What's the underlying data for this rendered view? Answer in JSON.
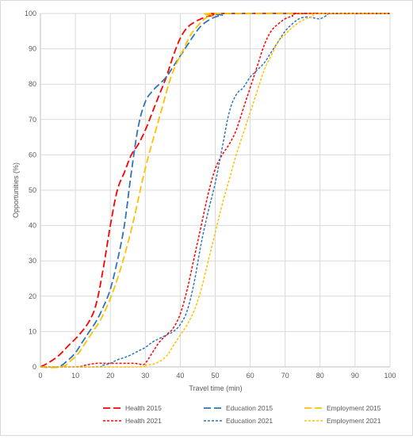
{
  "chart_data": {
    "type": "line",
    "xlabel": "Travel time (min)",
    "ylabel": "Opportunities (%)",
    "xlim": [
      0,
      100
    ],
    "ylim": [
      0,
      100
    ],
    "x_ticks": [
      "0",
      "10",
      "20",
      "30",
      "40",
      "50",
      "60",
      "70",
      "80",
      "90",
      "100"
    ],
    "y_ticks": [
      "0",
      "10",
      "20",
      "30",
      "40",
      "50",
      "60",
      "70",
      "80",
      "90",
      "100"
    ],
    "grid": "vertical and horizontal",
    "legend_position": "bottom",
    "series": [
      {
        "name": "Health 2015",
        "color": "#ff0000",
        "dash": "long-dash",
        "points": [
          [
            0,
            0
          ],
          [
            2,
            1
          ],
          [
            5,
            3
          ],
          [
            8,
            6
          ],
          [
            11,
            9
          ],
          [
            14,
            13
          ],
          [
            16,
            18
          ],
          [
            18,
            28
          ],
          [
            20,
            40
          ],
          [
            22,
            50
          ],
          [
            24,
            55
          ],
          [
            26,
            60
          ],
          [
            28,
            63
          ],
          [
            30,
            67
          ],
          [
            32,
            72
          ],
          [
            34,
            77
          ],
          [
            36,
            82
          ],
          [
            38,
            88
          ],
          [
            40,
            93
          ],
          [
            42,
            96
          ],
          [
            44,
            97.5
          ],
          [
            46,
            98.5
          ],
          [
            48,
            99.2
          ],
          [
            50,
            99.6
          ],
          [
            52,
            100
          ],
          [
            100,
            100
          ]
        ]
      },
      {
        "name": "Education 2015",
        "color": "#2e75b6",
        "dash": "long-dash",
        "points": [
          [
            0,
            0
          ],
          [
            5,
            0
          ],
          [
            8,
            2
          ],
          [
            10,
            4
          ],
          [
            12,
            7
          ],
          [
            14,
            10
          ],
          [
            16,
            13
          ],
          [
            18,
            17
          ],
          [
            20,
            22
          ],
          [
            22,
            30
          ],
          [
            24,
            40
          ],
          [
            26,
            55
          ],
          [
            28,
            68
          ],
          [
            30,
            75
          ],
          [
            32,
            78
          ],
          [
            34,
            80
          ],
          [
            36,
            82
          ],
          [
            38,
            85
          ],
          [
            40,
            88
          ],
          [
            42,
            91
          ],
          [
            44,
            94
          ],
          [
            46,
            96.5
          ],
          [
            48,
            98
          ],
          [
            50,
            99
          ],
          [
            52,
            99.5
          ],
          [
            54,
            100
          ],
          [
            100,
            100
          ]
        ]
      },
      {
        "name": "Employment 2015",
        "color": "#ffc000",
        "dash": "long-dash",
        "points": [
          [
            0,
            0
          ],
          [
            6,
            0
          ],
          [
            9,
            2
          ],
          [
            11,
            4
          ],
          [
            13,
            7
          ],
          [
            15,
            10
          ],
          [
            17,
            13
          ],
          [
            19,
            17
          ],
          [
            21,
            22
          ],
          [
            23,
            28
          ],
          [
            25,
            35
          ],
          [
            27,
            43
          ],
          [
            29,
            52
          ],
          [
            31,
            60
          ],
          [
            33,
            67
          ],
          [
            35,
            74
          ],
          [
            37,
            81
          ],
          [
            39,
            86
          ],
          [
            41,
            90
          ],
          [
            43,
            94
          ],
          [
            45,
            96.5
          ],
          [
            47,
            98.5
          ],
          [
            49,
            99.5
          ],
          [
            51,
            100
          ],
          [
            100,
            100
          ]
        ]
      },
      {
        "name": "Health 2021",
        "color": "#ff0000",
        "dash": "short-dash",
        "points": [
          [
            0,
            0
          ],
          [
            10,
            0
          ],
          [
            13,
            0.5
          ],
          [
            16,
            1
          ],
          [
            20,
            1
          ],
          [
            24,
            1
          ],
          [
            27,
            1
          ],
          [
            29,
            0.7
          ],
          [
            30,
            1
          ],
          [
            32,
            4
          ],
          [
            34,
            7
          ],
          [
            36,
            9
          ],
          [
            38,
            11
          ],
          [
            40,
            15
          ],
          [
            42,
            22
          ],
          [
            44,
            31
          ],
          [
            46,
            40
          ],
          [
            48,
            49
          ],
          [
            50,
            56
          ],
          [
            52,
            60
          ],
          [
            54,
            63
          ],
          [
            56,
            67
          ],
          [
            58,
            73
          ],
          [
            60,
            79
          ],
          [
            62,
            85
          ],
          [
            64,
            91
          ],
          [
            66,
            95
          ],
          [
            68,
            97
          ],
          [
            70,
            98.5
          ],
          [
            72,
            99.2
          ],
          [
            75,
            100
          ],
          [
            100,
            100
          ]
        ]
      },
      {
        "name": "Education 2021",
        "color": "#2e75b6",
        "dash": "short-dash",
        "points": [
          [
            0,
            0
          ],
          [
            16,
            0
          ],
          [
            18,
            0.5
          ],
          [
            20,
            1
          ],
          [
            22,
            2
          ],
          [
            25,
            3
          ],
          [
            28,
            4.5
          ],
          [
            30,
            5.5
          ],
          [
            32,
            7
          ],
          [
            34,
            8
          ],
          [
            36,
            9
          ],
          [
            38,
            10
          ],
          [
            40,
            12
          ],
          [
            42,
            16
          ],
          [
            44,
            24
          ],
          [
            46,
            35
          ],
          [
            48,
            44
          ],
          [
            50,
            52
          ],
          [
            52,
            62
          ],
          [
            54,
            72
          ],
          [
            56,
            77
          ],
          [
            58,
            79
          ],
          [
            60,
            82
          ],
          [
            62,
            84
          ],
          [
            64,
            86
          ],
          [
            66,
            89
          ],
          [
            68,
            92
          ],
          [
            70,
            95
          ],
          [
            72,
            97
          ],
          [
            74,
            98.5
          ],
          [
            76,
            99
          ],
          [
            78,
            98.8
          ],
          [
            80,
            98.5
          ],
          [
            82,
            99.5
          ],
          [
            84,
            100
          ],
          [
            100,
            100
          ]
        ]
      },
      {
        "name": "Employment 2021",
        "color": "#ffc000",
        "dash": "short-dash",
        "points": [
          [
            0,
            0
          ],
          [
            27,
            0
          ],
          [
            30,
            0.5
          ],
          [
            33,
            1
          ],
          [
            36,
            3
          ],
          [
            38,
            6
          ],
          [
            40,
            9
          ],
          [
            42,
            12
          ],
          [
            44,
            16
          ],
          [
            46,
            22
          ],
          [
            48,
            30
          ],
          [
            50,
            38
          ],
          [
            52,
            46
          ],
          [
            54,
            53
          ],
          [
            56,
            60
          ],
          [
            58,
            66
          ],
          [
            60,
            72
          ],
          [
            62,
            78
          ],
          [
            64,
            84
          ],
          [
            66,
            88
          ],
          [
            68,
            92
          ],
          [
            70,
            94
          ],
          [
            72,
            96
          ],
          [
            74,
            97.5
          ],
          [
            76,
            98.5
          ],
          [
            78,
            99.3
          ],
          [
            80,
            100
          ],
          [
            100,
            100
          ]
        ]
      }
    ]
  }
}
